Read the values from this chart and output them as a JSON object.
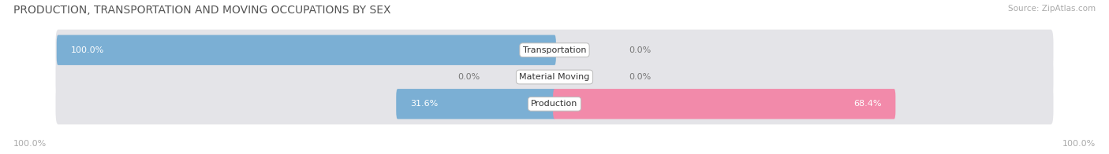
{
  "title": "PRODUCTION, TRANSPORTATION AND MOVING OCCUPATIONS BY SEX",
  "source": "Source: ZipAtlas.com",
  "categories": [
    "Transportation",
    "Material Moving",
    "Production"
  ],
  "male_values": [
    100.0,
    0.0,
    31.6
  ],
  "female_values": [
    0.0,
    0.0,
    68.4
  ],
  "male_color": "#7bafd4",
  "female_color": "#f28aaa",
  "bar_bg_color": "#e4e4e8",
  "title_fontsize": 10,
  "label_fontsize": 8,
  "value_fontsize": 8,
  "tick_fontsize": 8,
  "legend_fontsize": 9,
  "figsize": [
    14.06,
    1.96
  ],
  "dpi": 100,
  "axis_label_left": "100.0%",
  "axis_label_right": "100.0%"
}
